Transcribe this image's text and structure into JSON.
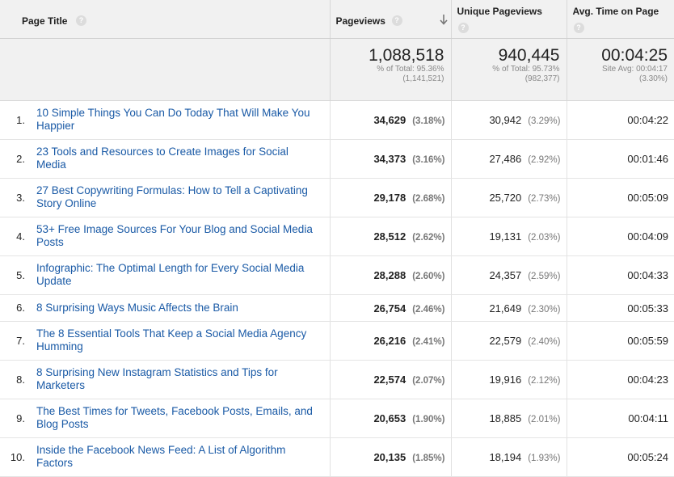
{
  "header": {
    "page_title": "Page Title",
    "pageviews": "Pageviews",
    "unique_pageviews": "Unique Pageviews",
    "avg_time": "Avg. Time on Page",
    "help_glyph": "?"
  },
  "totals": {
    "pageviews": "1,088,518",
    "pageviews_sub1": "% of Total: 95.36%",
    "pageviews_sub2": "(1,141,521)",
    "unique": "940,445",
    "unique_sub1": "% of Total: 95.73%",
    "unique_sub2": "(982,377)",
    "avg_time": "00:04:25",
    "avg_sub1": "Site Avg: 00:04:17",
    "avg_sub2": "(3.30%)"
  },
  "rows": [
    {
      "num": "1.",
      "title": "10 Simple Things You Can Do Today That Will Make You Happier",
      "pv": "34,629",
      "pv_pct": "(3.18%)",
      "uv": "30,942",
      "uv_pct": "(3.29%)",
      "time": "00:04:22"
    },
    {
      "num": "2.",
      "title": "23 Tools and Resources to Create Images for Social Media",
      "pv": "34,373",
      "pv_pct": "(3.16%)",
      "uv": "27,486",
      "uv_pct": "(2.92%)",
      "time": "00:01:46"
    },
    {
      "num": "3.",
      "title": "27 Best Copywriting Formulas: How to Tell a Captivating Story Online",
      "pv": "29,178",
      "pv_pct": "(2.68%)",
      "uv": "25,720",
      "uv_pct": "(2.73%)",
      "time": "00:05:09"
    },
    {
      "num": "4.",
      "title": "53+ Free Image Sources For Your Blog and Social Media Posts",
      "pv": "28,512",
      "pv_pct": "(2.62%)",
      "uv": "19,131",
      "uv_pct": "(2.03%)",
      "time": "00:04:09"
    },
    {
      "num": "5.",
      "title": "Infographic: The Optimal Length for Every Social Media Update",
      "pv": "28,288",
      "pv_pct": "(2.60%)",
      "uv": "24,357",
      "uv_pct": "(2.59%)",
      "time": "00:04:33"
    },
    {
      "num": "6.",
      "title": "8 Surprising Ways Music Affects the Brain",
      "pv": "26,754",
      "pv_pct": "(2.46%)",
      "uv": "21,649",
      "uv_pct": "(2.30%)",
      "time": "00:05:33"
    },
    {
      "num": "7.",
      "title": "The 8 Essential Tools That Keep a Social Media Agency Humming",
      "pv": "26,216",
      "pv_pct": "(2.41%)",
      "uv": "22,579",
      "uv_pct": "(2.40%)",
      "time": "00:05:59"
    },
    {
      "num": "8.",
      "title": "8 Surprising New Instagram Statistics and Tips for Marketers",
      "pv": "22,574",
      "pv_pct": "(2.07%)",
      "uv": "19,916",
      "uv_pct": "(2.12%)",
      "time": "00:04:23"
    },
    {
      "num": "9.",
      "title": "The Best Times for Tweets, Facebook Posts, Emails, and Blog Posts",
      "pv": "20,653",
      "pv_pct": "(1.90%)",
      "uv": "18,885",
      "uv_pct": "(2.01%)",
      "time": "00:04:11"
    },
    {
      "num": "10.",
      "title": "Inside the Facebook News Feed: A List of Algorithm Factors",
      "pv": "20,135",
      "pv_pct": "(1.85%)",
      "uv": "18,194",
      "uv_pct": "(1.93%)",
      "time": "00:05:24"
    }
  ]
}
